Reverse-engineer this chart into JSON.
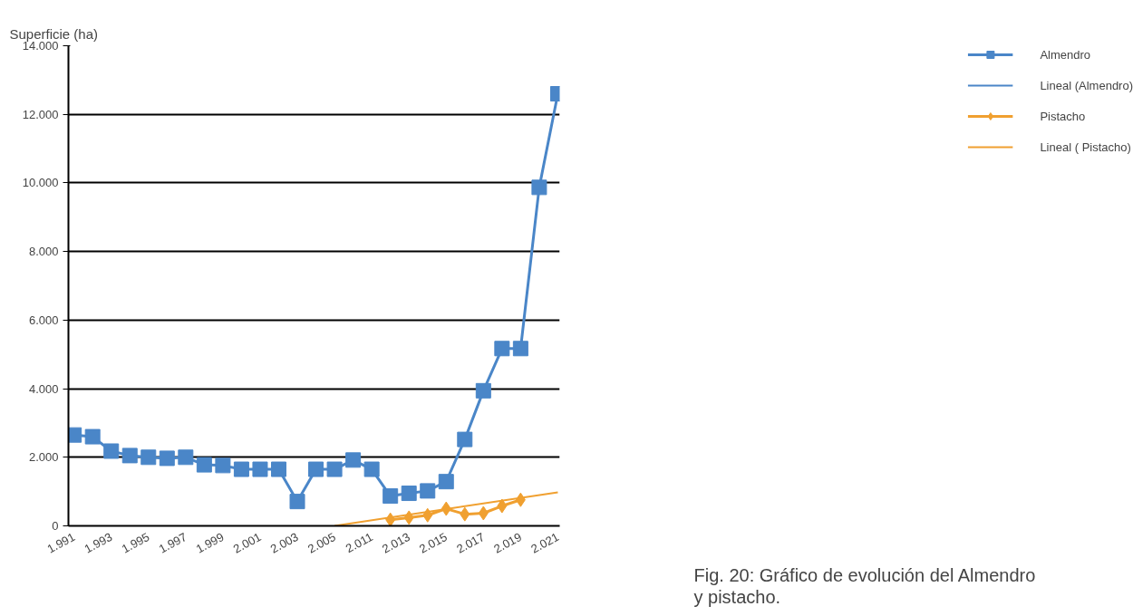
{
  "chart_data": {
    "type": "line",
    "ylabel": "Superficie (ha)",
    "categories": [
      "1.991",
      null,
      "1.993",
      null,
      "1.995",
      null,
      "1.997",
      null,
      "1.999",
      null,
      "2.001",
      null,
      "2.003",
      null,
      "2.005",
      null,
      "2.011",
      null,
      "2.013",
      null,
      "2.015",
      null,
      "2.017",
      null,
      "2.019",
      null,
      "2.021"
    ],
    "series": [
      {
        "name": "Almendro",
        "color": "#4a86c8",
        "marker": "square",
        "values": [
          2650,
          2600,
          2180,
          2050,
          2000,
          1970,
          2000,
          1780,
          1760,
          1650,
          1650,
          1650,
          710,
          1650,
          1650,
          1920,
          1650,
          870,
          950,
          1020,
          1290,
          2520,
          3940,
          5170,
          5170,
          9870,
          12600
        ]
      },
      {
        "name": "Lineal (Almendro)",
        "color": "#4a86c8",
        "marker": "none",
        "values": [
          null,
          null,
          null,
          null,
          null,
          null,
          null,
          null,
          null,
          null,
          null,
          null,
          null,
          null,
          null,
          null,
          null,
          null,
          null,
          null,
          null,
          null,
          null,
          null,
          null,
          null,
          null
        ]
      },
      {
        "name": "Pistacho",
        "color": "#f0a030",
        "marker": "diamond",
        "values": [
          null,
          null,
          null,
          null,
          null,
          null,
          null,
          null,
          null,
          null,
          null,
          null,
          null,
          null,
          null,
          null,
          null,
          180,
          240,
          310,
          500,
          340,
          370,
          580,
          760,
          null,
          null
        ]
      },
      {
        "name": "Lineal ( Pistacho)",
        "color": "#f0a030",
        "marker": "none",
        "values": [
          null,
          null,
          null,
          null,
          null,
          null,
          null,
          null,
          null,
          null,
          null,
          null,
          null,
          null,
          0,
          null,
          null,
          null,
          null,
          null,
          null,
          null,
          null,
          null,
          null,
          null,
          980
        ]
      }
    ],
    "ylim": [
      0,
      14000
    ],
    "yticks": [
      {
        "value": 0,
        "label": "0"
      },
      {
        "value": 2000,
        "label": "2.000"
      },
      {
        "value": 4000,
        "label": "4.000"
      },
      {
        "value": 6000,
        "label": "6.000"
      },
      {
        "value": 8000,
        "label": "8.000"
      },
      {
        "value": 10000,
        "label": "10.000"
      },
      {
        "value": 12000,
        "label": "12.000"
      },
      {
        "value": 14000,
        "label": "14.000"
      }
    ],
    "grid": "y",
    "legend": "right",
    "annotations": [
      "Fig. 20: Gráfico de evolución del Almendro\ny pistacho."
    ]
  }
}
